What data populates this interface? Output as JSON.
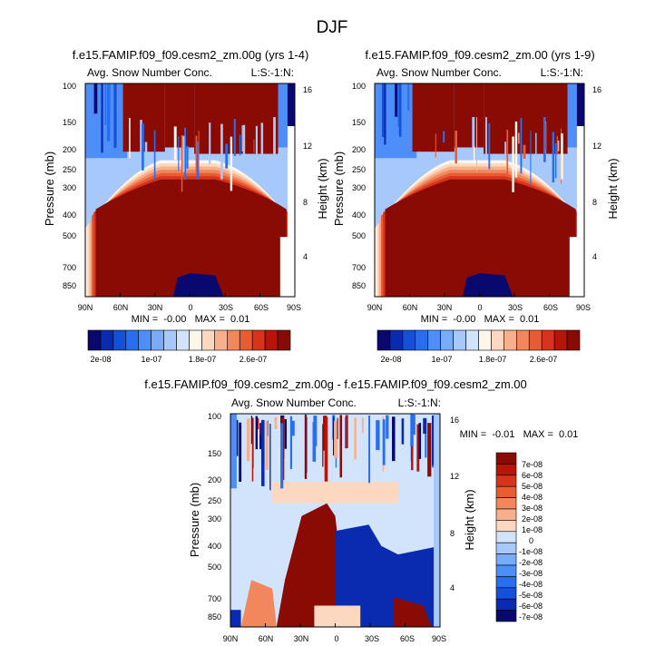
{
  "figure_title": "DJF",
  "colors": {
    "seq": [
      "#08086e",
      "#0a2ab0",
      "#1450d8",
      "#2a6ef0",
      "#4e8ef8",
      "#78acf8",
      "#a6c8fa",
      "#d2e4fc",
      "#fff6ea",
      "#fcd8c0",
      "#f8b08c",
      "#f2865c",
      "#e85c34",
      "#d8341c",
      "#b81408",
      "#8a0a04"
    ],
    "diff": [
      "#08086e",
      "#0a2ab0",
      "#1450d8",
      "#2a6ef0",
      "#4e8ef8",
      "#78acf8",
      "#a6c8fa",
      "#d2e4fc",
      "#fcd8c0",
      "#f8b08c",
      "#f2865c",
      "#e85c34",
      "#d8341c",
      "#b81408",
      "#8a0a04"
    ]
  },
  "chart_data": [
    {
      "type": "heatmap",
      "title": "f.e15.FAMIP.f09_f09.cesm2_zm.00g (yrs 1-4)",
      "subtitle_left": "Avg. Snow Number Conc.",
      "subtitle_right": "L:S:-1:N:",
      "ylabel": "Pressure (mb)",
      "ylabel_right": "Height (km)",
      "x_ticks": [
        "90N",
        "60N",
        "30N",
        "0",
        "30S",
        "60S",
        "90S"
      ],
      "y_ticks": [
        "100",
        "150",
        "200",
        "250",
        "300",
        "400",
        "500",
        "700",
        "850"
      ],
      "y_ticks_right": [
        "16",
        "12",
        "8",
        "4"
      ],
      "stats": "MIN =  -0.00   MAX =  0.01",
      "colorbar_labels": [
        "2e-08",
        "1e-07",
        "1.8e-07",
        "2.6e-07"
      ]
    },
    {
      "type": "heatmap",
      "title": "f.e15.FAMIP.f09_f09.cesm2_zm.00 (yrs 1-9)",
      "subtitle_left": "Avg. Snow Number Conc.",
      "subtitle_right": "L:S:-1:N:",
      "ylabel": "Pressure (mb)",
      "ylabel_right": "Height (km)",
      "x_ticks": [
        "90N",
        "60N",
        "30N",
        "0",
        "30S",
        "60S",
        "90S"
      ],
      "y_ticks": [
        "100",
        "150",
        "200",
        "250",
        "300",
        "400",
        "500",
        "700",
        "850"
      ],
      "y_ticks_right": [
        "16",
        "12",
        "8",
        "4"
      ],
      "stats": "MIN =  -0.00   MAX =  0.01",
      "colorbar_labels": [
        "2e-08",
        "1e-07",
        "1.8e-07",
        "2.6e-07"
      ]
    },
    {
      "type": "heatmap",
      "title": "f.e15.FAMIP.f09_f09.cesm2_zm.00g - f.e15.FAMIP.f09_f09.cesm2_zm.00",
      "subtitle_left": "Avg. Snow Number Conc.",
      "subtitle_right": "L:S:-1:N:",
      "ylabel": "Pressure (mb)",
      "ylabel_right": "Height (km)",
      "x_ticks": [
        "90N",
        "60N",
        "30N",
        "0",
        "30S",
        "60S",
        "90S"
      ],
      "y_ticks": [
        "100",
        "150",
        "200",
        "250",
        "300",
        "400",
        "500",
        "700",
        "850"
      ],
      "y_ticks_right": [
        "16",
        "12",
        "8",
        "4"
      ],
      "stats": "MIN =  -0.01   MAX =  0.01",
      "colorbar_labels": [
        "7e-08",
        "6e-08",
        "5e-08",
        "4e-08",
        "3e-08",
        "2e-08",
        "1e-08",
        "0",
        "-1e-08",
        "-2e-08",
        "-3e-08",
        "-4e-08",
        "-5e-08",
        "-6e-08",
        "-7e-08"
      ]
    }
  ]
}
